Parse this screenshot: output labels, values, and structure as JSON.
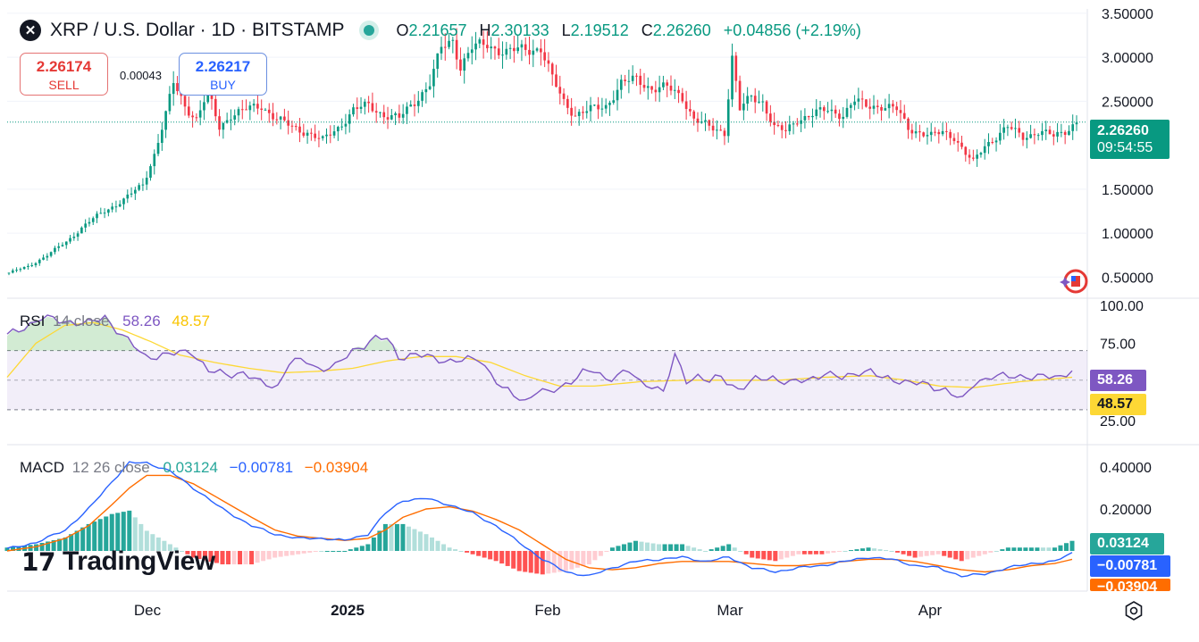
{
  "header": {
    "symbol_icon": "xrp-logo-icon",
    "title": "XRP / U.S. Dollar · 1D · BITSTAMP",
    "market_status": "market-open-dot",
    "ohlc": {
      "o_label": "O",
      "o": "2.21657",
      "h_label": "H",
      "h": "2.30133",
      "l_label": "L",
      "l": "2.19512",
      "c_label": "C",
      "c": "2.26260",
      "change": "+0.04856 (+2.19%)"
    }
  },
  "quote": {
    "sell_price": "2.26174",
    "sell_label": "SELL",
    "spread": "0.00043",
    "buy_price": "2.26217",
    "buy_label": "BUY"
  },
  "price_tag": {
    "price": "2.26260",
    "countdown": "09:54:55"
  },
  "rsi": {
    "label": "RSI",
    "params": "14 close",
    "value": "58.26",
    "ma_value": "48.57"
  },
  "macd": {
    "label": "MACD",
    "params": "12 26 close",
    "hist_value": "0.03124",
    "macd_value": "−0.00781",
    "signal_value": "−0.03904"
  },
  "brand": {
    "name": "TradingView",
    "icon": "tradingview-logo-icon"
  },
  "colors": {
    "up": "#089981",
    "down": "#f23645",
    "rsi_line": "#7e57c2",
    "rsi_ma": "#fdd835",
    "macd_line": "#2962ff",
    "signal_line": "#ff6d00",
    "hist_up_strong": "#26a69a",
    "hist_up_weak": "#b2dfdb",
    "hist_down_strong": "#ff5252",
    "hist_down_weak": "#ffcdd2"
  },
  "chart_data": {
    "type": "candlestick",
    "title": "XRP / U.S. Dollar · 1D · BITSTAMP",
    "x_labels": [
      "Dec",
      "2025",
      "Feb",
      "Mar",
      "Apr"
    ],
    "price_axis": {
      "ticks": [
        "3.50000",
        "3.00000",
        "2.50000",
        "1.50000",
        "1.00000",
        "0.50000"
      ],
      "ylim": [
        0.3,
        3.55
      ]
    },
    "rsi_axis": {
      "ticks": [
        "100.00",
        "75.00",
        "25.00"
      ],
      "bands": [
        30,
        70
      ],
      "mid": 50
    },
    "macd_axis": {
      "ticks": [
        "0.40000",
        "0.20000"
      ]
    },
    "price_keypoints": [
      [
        0,
        0.55
      ],
      [
        5,
        0.62
      ],
      [
        10,
        0.75
      ],
      [
        15,
        0.9
      ],
      [
        20,
        1.1
      ],
      [
        25,
        1.25
      ],
      [
        30,
        1.38
      ],
      [
        35,
        1.55
      ],
      [
        38,
        1.9
      ],
      [
        41,
        2.35
      ],
      [
        43,
        2.7
      ],
      [
        46,
        2.45
      ],
      [
        49,
        2.3
      ],
      [
        52,
        2.6
      ],
      [
        55,
        2.2
      ],
      [
        58,
        2.35
      ],
      [
        62,
        2.4
      ],
      [
        66,
        2.45
      ],
      [
        70,
        2.3
      ],
      [
        74,
        2.2
      ],
      [
        78,
        2.15
      ],
      [
        82,
        2.05
      ],
      [
        86,
        2.2
      ],
      [
        90,
        2.4
      ],
      [
        94,
        2.45
      ],
      [
        98,
        2.35
      ],
      [
        102,
        2.3
      ],
      [
        106,
        2.5
      ],
      [
        110,
        2.7
      ],
      [
        113,
        3.1
      ],
      [
        116,
        3.2
      ],
      [
        118,
        2.9
      ],
      [
        121,
        3.1
      ],
      [
        125,
        3.15
      ],
      [
        130,
        3.05
      ],
      [
        135,
        3.1
      ],
      [
        139,
        3.1
      ],
      [
        142,
        2.75
      ],
      [
        145,
        2.5
      ],
      [
        148,
        2.35
      ],
      [
        152,
        2.4
      ],
      [
        156,
        2.45
      ],
      [
        160,
        2.7
      ],
      [
        164,
        2.75
      ],
      [
        168,
        2.65
      ],
      [
        172,
        2.65
      ],
      [
        176,
        2.55
      ],
      [
        179,
        2.3
      ],
      [
        183,
        2.2
      ],
      [
        187,
        2.15
      ],
      [
        189,
        3.0
      ],
      [
        191,
        2.4
      ],
      [
        194,
        2.55
      ],
      [
        197,
        2.5
      ],
      [
        200,
        2.2
      ],
      [
        203,
        2.15
      ],
      [
        206,
        2.3
      ],
      [
        210,
        2.35
      ],
      [
        214,
        2.4
      ],
      [
        218,
        2.35
      ],
      [
        221,
        2.5
      ],
      [
        224,
        2.45
      ],
      [
        228,
        2.45
      ],
      [
        232,
        2.4
      ],
      [
        235,
        2.2
      ],
      [
        238,
        2.15
      ],
      [
        241,
        2.1
      ],
      [
        244,
        2.15
      ],
      [
        247,
        2.1
      ],
      [
        250,
        1.9
      ],
      [
        252,
        1.8
      ],
      [
        255,
        2.0
      ],
      [
        258,
        2.1
      ],
      [
        261,
        2.2
      ],
      [
        265,
        2.1
      ],
      [
        269,
        2.15
      ],
      [
        273,
        2.1
      ],
      [
        276,
        2.17
      ],
      [
        279,
        2.26
      ]
    ],
    "rsi_keypoints": [
      [
        0,
        80
      ],
      [
        6,
        92
      ],
      [
        10,
        90
      ],
      [
        14,
        88
      ],
      [
        17,
        93
      ],
      [
        20,
        80
      ],
      [
        24,
        66
      ],
      [
        28,
        67
      ],
      [
        32,
        70
      ],
      [
        35,
        56
      ],
      [
        38,
        54
      ],
      [
        41,
        55
      ],
      [
        44,
        48
      ],
      [
        47,
        46
      ],
      [
        49,
        62
      ],
      [
        52,
        63
      ],
      [
        54,
        58
      ],
      [
        57,
        59
      ],
      [
        60,
        70
      ],
      [
        64,
        78
      ],
      [
        66,
        78
      ],
      [
        68,
        66
      ],
      [
        71,
        67
      ],
      [
        74,
        65
      ],
      [
        77,
        63
      ],
      [
        79,
        63
      ],
      [
        82,
        65
      ],
      [
        86,
        44
      ],
      [
        90,
        36
      ],
      [
        92,
        43
      ],
      [
        94,
        41
      ],
      [
        96,
        45
      ],
      [
        100,
        55
      ],
      [
        102,
        56
      ],
      [
        104,
        51
      ],
      [
        108,
        56
      ],
      [
        110,
        48
      ],
      [
        112,
        47
      ],
      [
        114,
        42
      ],
      [
        116,
        66
      ],
      [
        118,
        50
      ],
      [
        120,
        53
      ],
      [
        122,
        49
      ],
      [
        124,
        52
      ],
      [
        127,
        44
      ],
      [
        130,
        50
      ],
      [
        133,
        52
      ],
      [
        136,
        48
      ],
      [
        139,
        50
      ],
      [
        142,
        55
      ],
      [
        145,
        51
      ],
      [
        148,
        56
      ],
      [
        150,
        56
      ],
      [
        152,
        51
      ],
      [
        155,
        50
      ],
      [
        158,
        48
      ],
      [
        161,
        45
      ],
      [
        163,
        44
      ],
      [
        165,
        39
      ],
      [
        166,
        36
      ],
      [
        168,
        48
      ],
      [
        171,
        53
      ],
      [
        174,
        52
      ],
      [
        177,
        53
      ],
      [
        180,
        52
      ],
      [
        183,
        52
      ],
      [
        185,
        58
      ]
    ],
    "rsi_ma_keypoints": [
      [
        0,
        52
      ],
      [
        5,
        75
      ],
      [
        10,
        87
      ],
      [
        15,
        89
      ],
      [
        20,
        84
      ],
      [
        25,
        76
      ],
      [
        30,
        67
      ],
      [
        36,
        62
      ],
      [
        42,
        58
      ],
      [
        48,
        55
      ],
      [
        54,
        56
      ],
      [
        60,
        58
      ],
      [
        66,
        63
      ],
      [
        72,
        66
      ],
      [
        78,
        66
      ],
      [
        84,
        62
      ],
      [
        90,
        53
      ],
      [
        96,
        46
      ],
      [
        102,
        46
      ],
      [
        110,
        49
      ],
      [
        118,
        50
      ],
      [
        126,
        50
      ],
      [
        134,
        50
      ],
      [
        142,
        52
      ],
      [
        150,
        53
      ],
      [
        156,
        50
      ],
      [
        162,
        46
      ],
      [
        168,
        45
      ],
      [
        176,
        49
      ],
      [
        185,
        52
      ]
    ],
    "macd_keypoints": [
      [
        0,
        0.01
      ],
      [
        5,
        0.04
      ],
      [
        10,
        0.1
      ],
      [
        14,
        0.2
      ],
      [
        18,
        0.33
      ],
      [
        21,
        0.42
      ],
      [
        24,
        0.42
      ],
      [
        28,
        0.38
      ],
      [
        32,
        0.3
      ],
      [
        37,
        0.2
      ],
      [
        42,
        0.12
      ],
      [
        46,
        0.08
      ],
      [
        50,
        0.06
      ],
      [
        54,
        0.06
      ],
      [
        58,
        0.05
      ],
      [
        62,
        0.08
      ],
      [
        65,
        0.18
      ],
      [
        68,
        0.24
      ],
      [
        72,
        0.25
      ],
      [
        76,
        0.22
      ],
      [
        80,
        0.18
      ],
      [
        84,
        0.12
      ],
      [
        88,
        0.04
      ],
      [
        92,
        -0.04
      ],
      [
        96,
        -0.1
      ],
      [
        100,
        -0.12
      ],
      [
        104,
        -0.08
      ],
      [
        108,
        -0.05
      ],
      [
        112,
        -0.04
      ],
      [
        116,
        -0.03
      ],
      [
        120,
        -0.05
      ],
      [
        124,
        -0.03
      ],
      [
        128,
        -0.08
      ],
      [
        132,
        -0.1
      ],
      [
        136,
        -0.08
      ],
      [
        140,
        -0.07
      ],
      [
        144,
        -0.05
      ],
      [
        148,
        -0.03
      ],
      [
        152,
        -0.04
      ],
      [
        156,
        -0.07
      ],
      [
        160,
        -0.08
      ],
      [
        164,
        -0.12
      ],
      [
        168,
        -0.11
      ],
      [
        172,
        -0.08
      ],
      [
        176,
        -0.06
      ],
      [
        180,
        -0.05
      ],
      [
        183,
        -0.01
      ]
    ],
    "signal_keypoints": [
      [
        0,
        0.0
      ],
      [
        5,
        0.02
      ],
      [
        10,
        0.06
      ],
      [
        14,
        0.12
      ],
      [
        18,
        0.22
      ],
      [
        21,
        0.3
      ],
      [
        24,
        0.36
      ],
      [
        28,
        0.36
      ],
      [
        32,
        0.32
      ],
      [
        37,
        0.24
      ],
      [
        42,
        0.16
      ],
      [
        46,
        0.1
      ],
      [
        50,
        0.07
      ],
      [
        54,
        0.06
      ],
      [
        58,
        0.05
      ],
      [
        62,
        0.06
      ],
      [
        65,
        0.1
      ],
      [
        68,
        0.16
      ],
      [
        72,
        0.2
      ],
      [
        76,
        0.21
      ],
      [
        80,
        0.19
      ],
      [
        84,
        0.15
      ],
      [
        88,
        0.1
      ],
      [
        92,
        0.03
      ],
      [
        96,
        -0.04
      ],
      [
        100,
        -0.08
      ],
      [
        104,
        -0.09
      ],
      [
        108,
        -0.08
      ],
      [
        112,
        -0.06
      ],
      [
        116,
        -0.05
      ],
      [
        120,
        -0.05
      ],
      [
        124,
        -0.05
      ],
      [
        128,
        -0.06
      ],
      [
        132,
        -0.07
      ],
      [
        136,
        -0.07
      ],
      [
        140,
        -0.06
      ],
      [
        144,
        -0.05
      ],
      [
        148,
        -0.04
      ],
      [
        152,
        -0.04
      ],
      [
        156,
        -0.05
      ],
      [
        160,
        -0.07
      ],
      [
        164,
        -0.09
      ],
      [
        168,
        -0.1
      ],
      [
        172,
        -0.09
      ],
      [
        176,
        -0.07
      ],
      [
        180,
        -0.06
      ],
      [
        183,
        -0.04
      ]
    ]
  }
}
